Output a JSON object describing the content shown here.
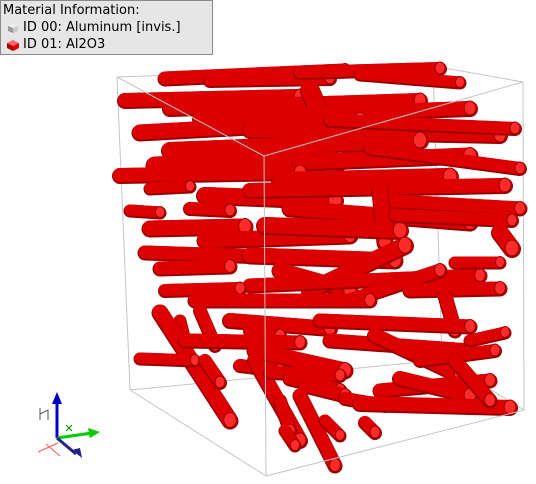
{
  "legend": {
    "title": "Material Information:",
    "materials": [
      {
        "id_label": "ID 00: Aluminum [invis.]",
        "icon": "cube-icon",
        "color": "#c8c8c8"
      },
      {
        "id_label": "ID 01: Al2O3",
        "icon": "cube-icon",
        "color": "#e00000"
      }
    ]
  },
  "scene": {
    "fiber_color": "#dd0000",
    "fiber_edge_color": "#9a0000",
    "box_edge_color": "#bdbdbd",
    "axis_colors": {
      "x": "#00cc00",
      "y": "#ff3333",
      "z": "#0000cc"
    }
  }
}
